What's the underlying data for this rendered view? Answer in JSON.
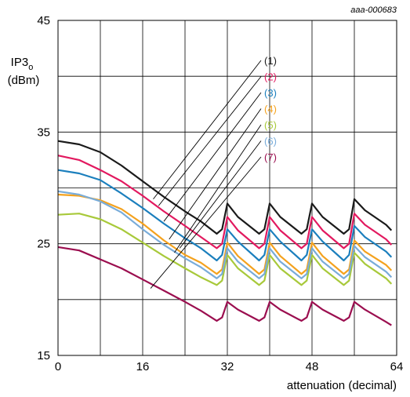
{
  "figure_id": "aaa-000683",
  "chart_data": {
    "type": "line",
    "xlabel": "attenuation (decimal)",
    "ylabel": "IP3",
    "ylabel_subscript": "o",
    "ylabel_unit": "(dBm)",
    "xlim": [
      0,
      64
    ],
    "ylim": [
      15,
      45
    ],
    "xticks": [
      "0",
      "16",
      "32",
      "48",
      "64"
    ],
    "yticks": [
      "15",
      "25",
      "35",
      "45"
    ],
    "grid": true,
    "series": [
      {
        "name": "(1)",
        "color": "#1a1a1a",
        "x": [
          0,
          4,
          8,
          12,
          16,
          20,
          24,
          27,
          30,
          31,
          32,
          34,
          38,
          39,
          40,
          42,
          46,
          47,
          48,
          50,
          54,
          55,
          56,
          58,
          62,
          63
        ],
        "values": [
          34.2,
          33.9,
          33.2,
          32.0,
          30.6,
          29.2,
          27.9,
          27.0,
          25.9,
          26.3,
          28.6,
          27.4,
          25.9,
          26.3,
          28.6,
          27.4,
          25.9,
          26.3,
          28.6,
          27.4,
          25.9,
          26.3,
          29.0,
          28.0,
          26.7,
          26.2
        ]
      },
      {
        "name": "(2)",
        "color": "#e2195f",
        "x": [
          0,
          4,
          8,
          12,
          16,
          20,
          24,
          27,
          30,
          31,
          32,
          34,
          38,
          39,
          40,
          42,
          46,
          47,
          48,
          50,
          54,
          55,
          56,
          58,
          62,
          63
        ],
        "values": [
          32.9,
          32.5,
          31.6,
          30.6,
          29.3,
          27.9,
          26.6,
          25.6,
          24.6,
          25.0,
          27.4,
          26.2,
          24.6,
          25.0,
          27.4,
          26.2,
          24.6,
          25.0,
          27.4,
          26.2,
          24.6,
          25.0,
          27.7,
          26.7,
          25.4,
          24.9
        ]
      },
      {
        "name": "(3)",
        "color": "#1b7fbd",
        "x": [
          0,
          4,
          8,
          12,
          16,
          20,
          24,
          27,
          30,
          31,
          32,
          34,
          38,
          39,
          40,
          42,
          46,
          47,
          48,
          50,
          54,
          55,
          56,
          58,
          62,
          63
        ],
        "values": [
          31.6,
          31.3,
          30.7,
          29.5,
          28.2,
          26.8,
          25.5,
          24.6,
          23.5,
          24.0,
          26.3,
          25.2,
          23.5,
          24.0,
          26.3,
          25.2,
          23.5,
          24.0,
          26.3,
          25.2,
          23.5,
          24.0,
          26.6,
          25.6,
          24.3,
          23.8
        ]
      },
      {
        "name": "(4)",
        "color": "#f4a21e",
        "x": [
          0,
          4,
          8,
          12,
          16,
          20,
          24,
          27,
          30,
          31,
          32,
          34,
          38,
          39,
          40,
          42,
          46,
          47,
          48,
          50,
          54,
          55,
          56,
          58,
          62,
          63
        ],
        "values": [
          29.4,
          29.3,
          28.9,
          28.1,
          26.8,
          25.3,
          24.0,
          23.3,
          22.3,
          22.7,
          25.1,
          23.9,
          22.3,
          22.7,
          25.1,
          23.9,
          22.3,
          22.7,
          25.1,
          23.9,
          22.3,
          22.7,
          25.3,
          24.3,
          23.1,
          22.6
        ]
      },
      {
        "name": "(5)",
        "color": "#a8c93a",
        "x": [
          0,
          4,
          8,
          12,
          16,
          20,
          24,
          27,
          30,
          31,
          32,
          34,
          38,
          39,
          40,
          42,
          46,
          47,
          48,
          50,
          54,
          55,
          56,
          58,
          62,
          63
        ],
        "values": [
          27.6,
          27.7,
          27.2,
          26.3,
          25.1,
          23.9,
          22.8,
          22.0,
          21.3,
          21.7,
          24.0,
          22.8,
          21.3,
          21.7,
          24.0,
          22.8,
          21.3,
          21.7,
          24.0,
          22.8,
          21.3,
          21.7,
          24.2,
          23.2,
          21.9,
          21.4
        ]
      },
      {
        "name": "(6)",
        "color": "#79acd9",
        "x": [
          0,
          4,
          8,
          12,
          16,
          20,
          24,
          27,
          30,
          31,
          32,
          34,
          38,
          39,
          40,
          42,
          46,
          47,
          48,
          50,
          54,
          55,
          56,
          58,
          62,
          63
        ],
        "values": [
          29.7,
          29.4,
          28.8,
          27.8,
          26.3,
          24.9,
          23.7,
          22.9,
          21.9,
          22.3,
          24.6,
          23.4,
          21.9,
          22.3,
          24.6,
          23.4,
          21.9,
          22.3,
          24.6,
          23.4,
          21.9,
          22.3,
          24.8,
          23.8,
          22.5,
          22.0
        ]
      },
      {
        "name": "(7)",
        "color": "#9b0e4f",
        "x": [
          0,
          4,
          8,
          12,
          16,
          20,
          24,
          27,
          30,
          31,
          32,
          34,
          38,
          39,
          40,
          42,
          46,
          47,
          48,
          50,
          54,
          55,
          56,
          58,
          62,
          63
        ],
        "values": [
          24.7,
          24.4,
          23.6,
          22.8,
          21.8,
          20.8,
          19.8,
          19.0,
          18.1,
          18.4,
          19.8,
          19.1,
          18.1,
          18.4,
          19.8,
          19.1,
          18.1,
          18.4,
          19.8,
          19.1,
          18.1,
          18.4,
          19.8,
          19.1,
          18.0,
          17.7
        ]
      }
    ],
    "callouts": [
      {
        "series": "(1)",
        "x": 18,
        "y": 29.0
      },
      {
        "series": "(2)",
        "x": 19,
        "y": 28.4
      },
      {
        "series": "(3)",
        "x": 20,
        "y": 27.0
      },
      {
        "series": "(4)",
        "x": 21,
        "y": 25.4
      },
      {
        "series": "(5)",
        "x": 22,
        "y": 24.2
      },
      {
        "series": "(6)",
        "x": 23,
        "y": 24.6
      },
      {
        "series": "(7)",
        "x": 17.5,
        "y": 21.0
      }
    ]
  }
}
